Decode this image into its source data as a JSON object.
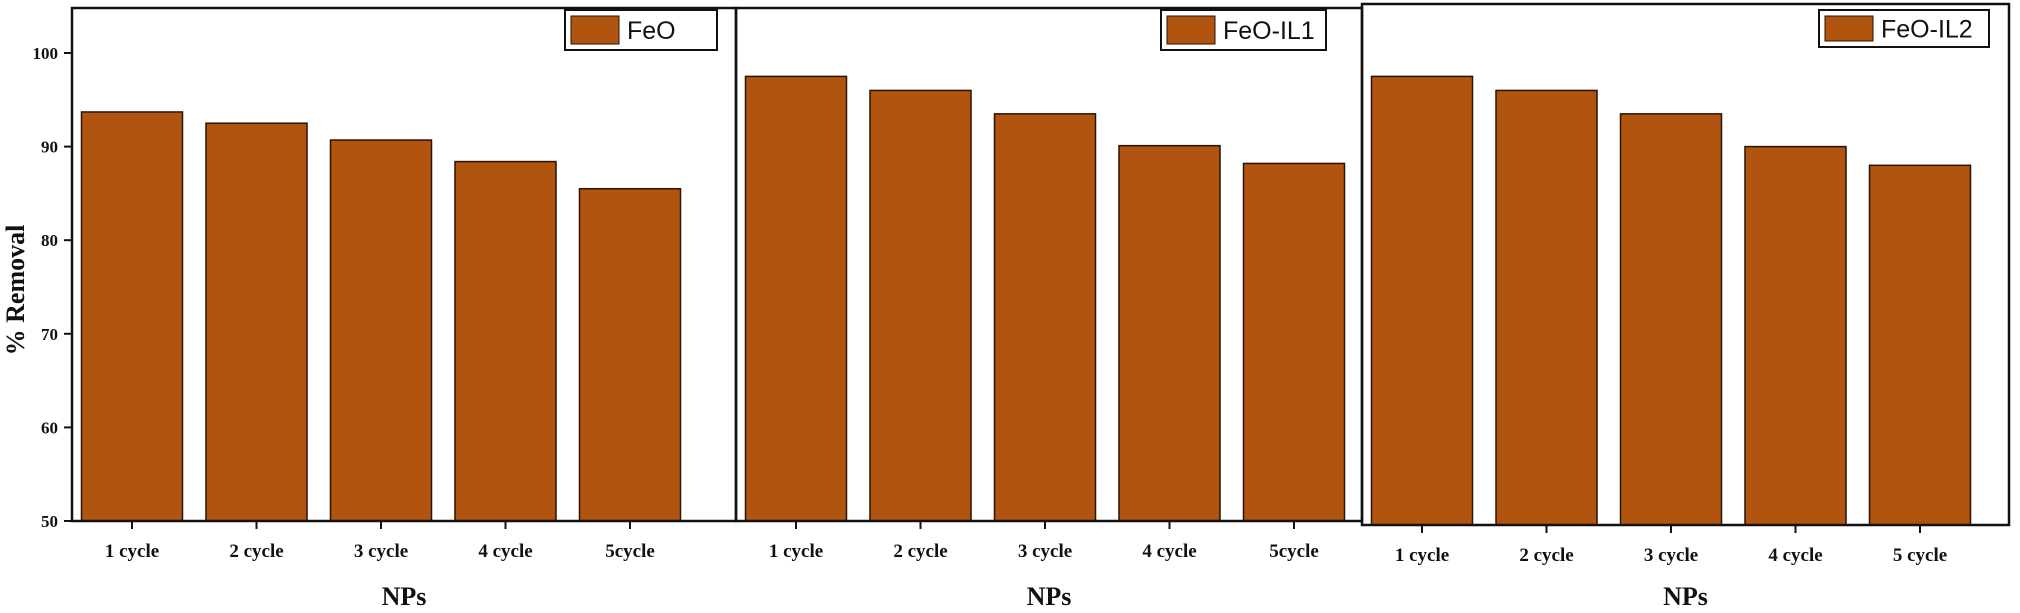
{
  "chart_data": {
    "type": "bar",
    "ylabel": "% Removal",
    "ylim": [
      50,
      105
    ],
    "yticks": [
      50,
      60,
      70,
      80,
      90,
      100
    ],
    "bar_color": "#b0540f",
    "panels": [
      {
        "legend": "FeO",
        "xlabel": "NPs",
        "categories": [
          "1 cycle",
          "2 cycle",
          "3 cycle",
          "4 cycle",
          "5cycle"
        ],
        "values": [
          93.7,
          92.5,
          90.7,
          88.4,
          85.5
        ]
      },
      {
        "legend": "FeO-IL1",
        "xlabel": "NPs",
        "categories": [
          "1 cycle",
          "2 cycle",
          "3 cycle",
          "4 cycle",
          "5cycle"
        ],
        "values": [
          97.5,
          96.0,
          93.5,
          90.1,
          88.2
        ]
      },
      {
        "legend": "FeO-IL2",
        "xlabel": "NPs",
        "categories": [
          "1 cycle",
          "2 cycle",
          "3 cycle",
          "4 cycle",
          "5 cycle"
        ],
        "values": [
          97.5,
          96.0,
          93.5,
          90.0,
          88.0
        ]
      }
    ]
  }
}
